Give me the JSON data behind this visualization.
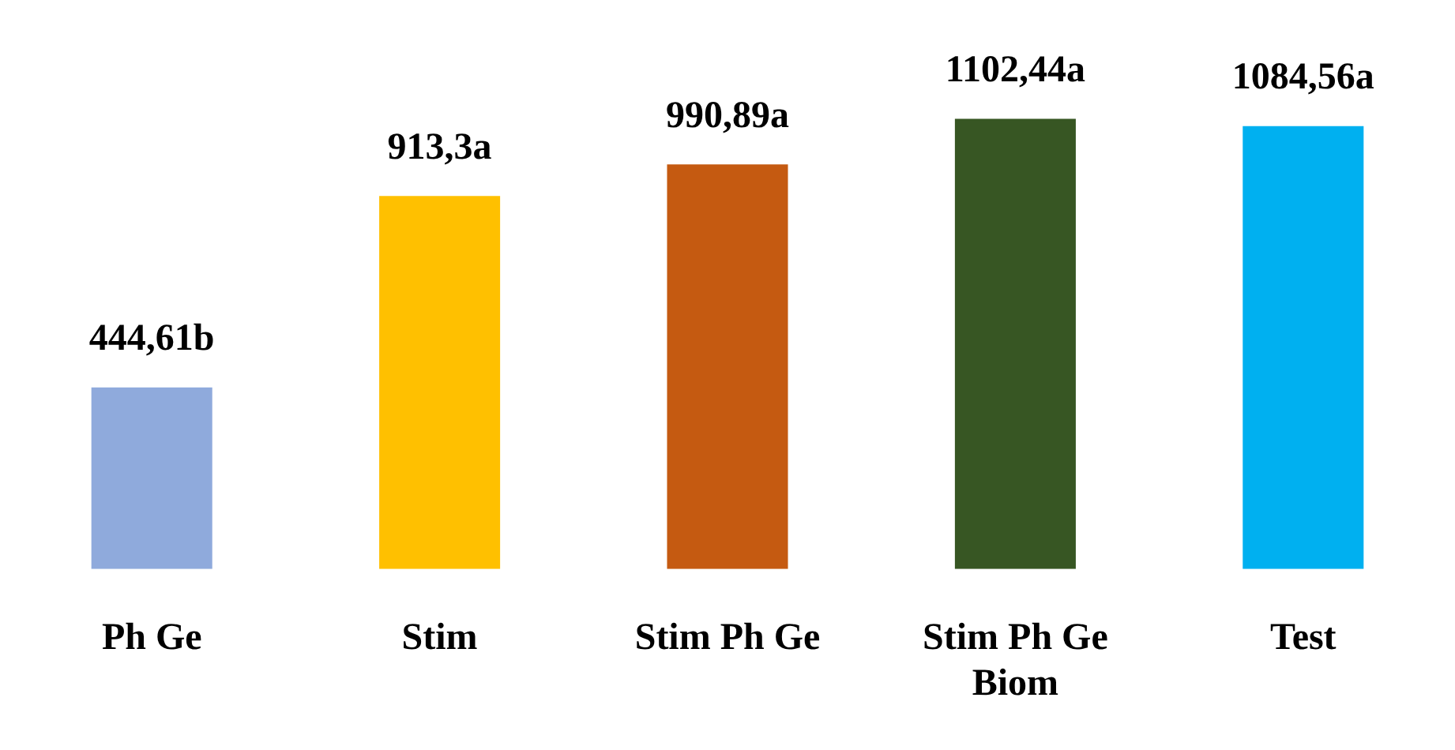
{
  "chart_data": {
    "type": "bar",
    "categories": [
      "Ph Ge",
      "Stim",
      "Stim Ph Ge",
      "Stim Ph Ge Biom",
      "Test"
    ],
    "values": [
      444.61,
      913.3,
      990.89,
      1102.44,
      1084.56
    ],
    "colors": [
      "#8faadc",
      "#ffc000",
      "#c55a11",
      "#375623",
      "#00b0f0"
    ],
    "value_labels": [
      "444,61b",
      "913,3a",
      "990,89a",
      "1102,44a",
      "1084,56a"
    ]
  }
}
